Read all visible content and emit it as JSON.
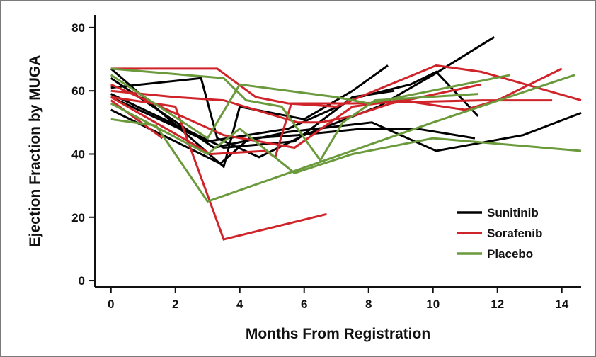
{
  "chart_data": {
    "type": "line",
    "xlabel": "Months From Registration",
    "ylabel": "Ejection Fraction by MUGA",
    "xlim": [
      -0.5,
      14.6
    ],
    "ylim": [
      -2,
      84
    ],
    "x_ticks": [
      0,
      2,
      4,
      6,
      8,
      10,
      12,
      14
    ],
    "y_ticks": [
      0,
      20,
      40,
      60,
      80
    ],
    "grid": false,
    "legend_position": "bottom-right",
    "groups": [
      {
        "name": "Sunitinib",
        "color": "#000000",
        "lines": [
          [
            [
              0,
              67
            ],
            [
              3.5,
              36
            ],
            [
              4,
              55
            ],
            [
              6,
              51
            ],
            [
              7.5,
              60
            ],
            [
              8.6,
              68
            ]
          ],
          [
            [
              0,
              61
            ],
            [
              2.8,
              64
            ],
            [
              3.3,
              45
            ],
            [
              4.6,
              39
            ],
            [
              6,
              46
            ],
            [
              8.3,
              55
            ],
            [
              10,
              65
            ],
            [
              11.9,
              77
            ]
          ],
          [
            [
              0,
              64
            ],
            [
              3.2,
              42
            ],
            [
              5.5,
              47
            ],
            [
              8.1,
              50
            ],
            [
              10.1,
              41
            ],
            [
              12.8,
              46
            ],
            [
              14.6,
              53
            ]
          ],
          [
            [
              0,
              58
            ],
            [
              3,
              44
            ],
            [
              5.5,
              48
            ],
            [
              7.7,
              58
            ],
            [
              9.3,
              62
            ],
            [
              10.1,
              66
            ],
            [
              11.4,
              52
            ]
          ],
          [
            [
              0,
              54
            ],
            [
              3.4,
              37
            ],
            [
              4.3,
              45
            ],
            [
              5.8,
              46
            ],
            [
              7.8,
              48
            ],
            [
              9.5,
              48
            ],
            [
              11.3,
              45
            ]
          ],
          [
            [
              0,
              59
            ],
            [
              3.5,
              42
            ],
            [
              5.7,
              44
            ],
            [
              7.5,
              58
            ],
            [
              8.8,
              60
            ]
          ]
        ]
      },
      {
        "name": "Sorafenib",
        "color": "#d0242b",
        "lines": [
          [
            [
              0,
              67
            ],
            [
              3.3,
              67
            ],
            [
              4.5,
              58
            ],
            [
              5.5,
              56
            ],
            [
              7,
              55
            ],
            [
              10.1,
              68
            ],
            [
              11.5,
              66
            ],
            [
              12.2,
              64
            ],
            [
              14.6,
              57
            ]
          ],
          [
            [
              0,
              60
            ],
            [
              2,
              58
            ],
            [
              3.5,
              57
            ],
            [
              5.8,
              50
            ],
            [
              6.5,
              50
            ],
            [
              7.5,
              52
            ],
            [
              8.7,
              56
            ],
            [
              11.5,
              62
            ]
          ],
          [
            [
              0,
              58
            ],
            [
              3.1,
              40
            ],
            [
              4.8,
              41
            ],
            [
              5.1,
              39
            ],
            [
              5.6,
              56
            ],
            [
              7.5,
              56
            ],
            [
              11.5,
              57
            ],
            [
              13.7,
              57
            ]
          ],
          [
            [
              0,
              62
            ],
            [
              3.5,
              46
            ],
            [
              5.7,
              42
            ],
            [
              7.5,
              55
            ],
            [
              9,
              57
            ],
            [
              11,
              54
            ],
            [
              12,
              57
            ],
            [
              14,
              67
            ]
          ],
          [
            [
              0,
              57
            ],
            [
              1.6,
              45
            ]
          ],
          [
            [
              0,
              58
            ],
            [
              2,
              55
            ],
            [
              3.5,
              13
            ],
            [
              6.7,
              21
            ]
          ]
        ]
      },
      {
        "name": "Placebo",
        "color": "#6a9a3c",
        "lines": [
          [
            [
              0,
              67
            ],
            [
              3.5,
              64
            ],
            [
              4.2,
              57
            ],
            [
              5.3,
              55
            ],
            [
              6.5,
              38
            ],
            [
              7.2,
              50
            ],
            [
              8.2,
              57
            ],
            [
              11.4,
              59
            ]
          ],
          [
            [
              0,
              65
            ],
            [
              3,
              45
            ],
            [
              4,
              62
            ],
            [
              7,
              58
            ],
            [
              8,
              56
            ],
            [
              12.4,
              65
            ]
          ],
          [
            [
              0,
              56
            ],
            [
              3,
              40
            ],
            [
              4,
              48
            ],
            [
              5.7,
              34
            ],
            [
              7.5,
              40
            ],
            [
              10,
              45
            ],
            [
              14.6,
              41
            ]
          ],
          [
            [
              0,
              51
            ],
            [
              1.4,
              49
            ],
            [
              3,
              25
            ],
            [
              10,
              50
            ],
            [
              14.4,
              65
            ]
          ]
        ]
      }
    ]
  }
}
